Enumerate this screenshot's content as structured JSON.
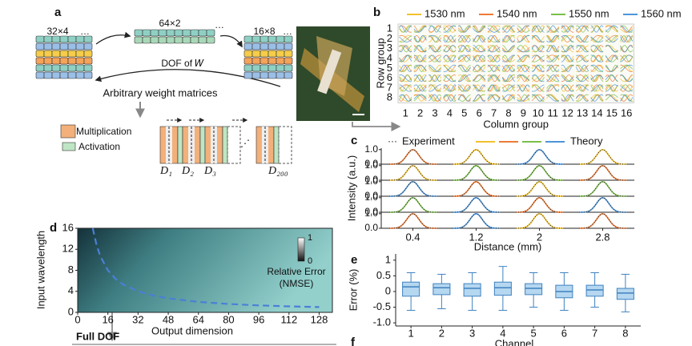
{
  "panel_a": {
    "label": "a",
    "left_matrix": "32×4",
    "middle_matrix": "64×2",
    "right_matrix": "16×8",
    "dof_label": "DOF of 𝑊",
    "caption": "Arbitrary weight matrices",
    "legend": [
      "Multiplication",
      "Activation"
    ],
    "layers": [
      "D₁",
      "D₂",
      "D₃",
      "D₂₀₀"
    ]
  },
  "panel_b": {
    "label": "b",
    "legend": [
      {
        "name": "1530 nm",
        "color": "#f2c12e"
      },
      {
        "name": "1540 nm",
        "color": "#ee7b36"
      },
      {
        "name": "1550 nm",
        "color": "#7cbf4a"
      },
      {
        "name": "1560 nm",
        "color": "#4e95d9"
      }
    ],
    "ylabel": "Row group",
    "xlabel": "Column group",
    "rows": [
      1,
      2,
      3,
      4,
      5,
      6,
      7,
      8
    ],
    "columns": [
      1,
      2,
      3,
      4,
      5,
      6,
      7,
      8,
      9,
      10,
      11,
      12,
      13,
      14,
      15,
      16
    ]
  },
  "panel_c": {
    "label": "c",
    "experiment": "Experiment",
    "theory": "Theory",
    "theory_colors": [
      "#f2c12e",
      "#ee7b36",
      "#7cbf4a",
      "#4e95d9"
    ],
    "ylabel": "Intensity (a.u.)",
    "xlabel": "Distance (mm)",
    "xlim": [
      0,
      3.2
    ],
    "xticks": [
      0.4,
      1.2,
      2.0,
      2.8
    ],
    "yticks": [
      {
        "value": 0,
        "label": "0.0"
      },
      {
        "value": 1,
        "label": "1.0"
      }
    ],
    "ylim": [
      0,
      1.1
    ],
    "peak_positions": [
      0.4,
      1.2,
      2.0,
      2.8
    ],
    "rows": [
      {
        "heights": [
          1,
          1,
          1,
          1
        ],
        "colors": [
          "#ee7b36",
          "#f2c12e",
          "#4e95d9",
          "#f2c12e"
        ]
      },
      {
        "heights": [
          1,
          1,
          1,
          1
        ],
        "colors": [
          "#f2c12e",
          "#7cbf4a",
          "#7cbf4a",
          "#ee7b36"
        ]
      },
      {
        "heights": [
          1,
          1,
          1,
          1
        ],
        "colors": [
          "#4e95d9",
          "#ee7b36",
          "#f2c12e",
          "#7cbf4a"
        ]
      },
      {
        "heights": [
          1,
          1,
          1,
          1
        ],
        "colors": [
          "#7cbf4a",
          "#4e95d9",
          "#ee7b36",
          "#4e95d9"
        ]
      },
      {
        "heights": [
          1,
          1,
          1,
          1
        ],
        "colors": [
          "#ee7b36",
          "#4e95d9",
          "#f2c12e",
          "#ee7b36"
        ]
      }
    ]
  },
  "chart_data": [
    {
      "type": "heatmap-curve",
      "label": "d",
      "xlabel": "Output dimension",
      "ylabel": "Input wavelength",
      "xlim": [
        0,
        135
      ],
      "ylim": [
        0,
        16
      ],
      "xticks": [
        0,
        16,
        32,
        48,
        64,
        80,
        96,
        112,
        128
      ],
      "yticks": [
        0,
        4,
        8,
        12,
        16
      ],
      "x": [
        8,
        10,
        12,
        16,
        20,
        24,
        32,
        40,
        48,
        64,
        80,
        96,
        112,
        128
      ],
      "values": [
        16,
        12.8,
        10.67,
        8,
        6.4,
        5.33,
        4,
        3.2,
        2.67,
        2,
        1.6,
        1.33,
        1.14,
        1
      ],
      "color": "#4a7fd6",
      "colorbar": {
        "ticks": [
          0,
          1
        ],
        "label": [
          "Relative Error",
          "(NMSE)"
        ]
      },
      "annotation": "Full DOF"
    },
    {
      "type": "box",
      "label": "e",
      "xlabel": "Channel",
      "ylabel": "Error (%)",
      "categories": [
        "1",
        "2",
        "3",
        "4",
        "5",
        "6",
        "7",
        "8"
      ],
      "ylim": [
        -1.1,
        1.2
      ],
      "yticks": [
        1,
        0.5,
        0,
        -0.5,
        {
          "value": -1,
          "label": "-1.0"
        }
      ],
      "min": [
        -0.6,
        -0.55,
        -0.6,
        -0.6,
        -0.5,
        -0.6,
        -0.5,
        -0.65
      ],
      "q1": [
        -0.15,
        -0.1,
        -0.15,
        -0.12,
        -0.1,
        -0.2,
        -0.15,
        -0.25
      ],
      "median": [
        0.15,
        0.12,
        0.1,
        0.12,
        0.1,
        0,
        0.05,
        -0.05
      ],
      "q3": [
        0.3,
        0.25,
        0.25,
        0.3,
        0.25,
        0.2,
        0.2,
        0.1
      ],
      "max": [
        0.6,
        0.55,
        0.6,
        0.8,
        0.6,
        0.6,
        0.6,
        0.55
      ],
      "color": "#b5d7f0",
      "edge": "#3f82c0"
    }
  ],
  "panel_f": {
    "label": "f"
  }
}
